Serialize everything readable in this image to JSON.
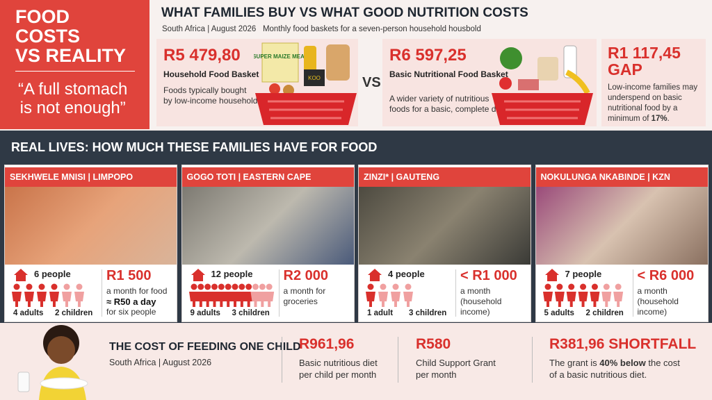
{
  "hero": {
    "title_lines": [
      "FOOD",
      "COSTS",
      "VS REALITY"
    ],
    "quote_lines": [
      "“A full stomach",
      "is not enough”"
    ]
  },
  "header": {
    "title": "WHAT FAMILIES BUY VS WHAT GOOD NUTRITION COSTS",
    "location_date": "South Africa | August 2026",
    "subtitle": "Monthly food baskets for a seven-person household housbold"
  },
  "baskets": [
    {
      "price": "R5 479,80",
      "name": "Household Food Basket",
      "description_lines": [
        "Foods typically bought",
        "by low-income households"
      ],
      "labels": [
        "SUPER MAIZE MEAL",
        "KOO"
      ]
    },
    {
      "price": "R6 597,25",
      "name": "Basic Nutritional Food Basket",
      "description_lines": [
        "A wider variety of nutritious",
        "foods for a basic, complete diet"
      ]
    }
  ],
  "vs": "VS",
  "gap": {
    "amount": "R1 117,45",
    "label": "GAP",
    "description_lines": [
      "Low-income families may",
      "underspend on basic",
      "nutritional food by a"
    ],
    "last_line": [
      "minimum of ",
      "17%",
      "."
    ]
  },
  "section_title": "REAL LIVES: HOW MUCH THESE FAMILIES HAVE FOR FOOD",
  "families": [
    {
      "name": "SEKHWELE MNISI | LIMPOPO",
      "people": "6 people",
      "icons": {
        "adults": 4,
        "children": 2
      },
      "adults": "4 adults",
      "children": "2 children",
      "amount": "R1 500",
      "lines": [
        {
          "text": "a month for food",
          "bold": false
        },
        {
          "text": "≈ R50 a day",
          "bold": true
        },
        {
          "text": "for six people",
          "bold": false
        }
      ]
    },
    {
      "name": "GOGO TOTI | EASTERN CAPE",
      "people": "12 people",
      "icons": {
        "adults": 9,
        "children": 3
      },
      "adults": "9 adults",
      "children": "3 children",
      "amount": "R2 000",
      "lines": [
        {
          "text": "a month for groceries",
          "bold": false
        }
      ]
    },
    {
      "name": "ZINZI* | GAUTENG",
      "people": "4 people",
      "icons": {
        "adults": 1,
        "children": 3
      },
      "adults": "1 adult",
      "children": "3 children",
      "amount": "< R1 000",
      "lines": [
        {
          "text": "a month",
          "bold": false
        },
        {
          "text": "(household income)",
          "bold": false
        }
      ]
    },
    {
      "name": "NOKULUNGA NKABINDE | KZN",
      "people": "7 people",
      "icons": {
        "adults": 5,
        "children": 2
      },
      "adults": "5 adults",
      "children": "2 children",
      "amount": "< R6 000",
      "lines": [
        {
          "text": "a month",
          "bold": false
        },
        {
          "text": "(household income)",
          "bold": false
        }
      ]
    }
  ],
  "child_cost": {
    "title": "THE COST OF FEEDING ONE CHILD",
    "location_date": "South Africa | August 2026",
    "items": [
      {
        "amount": "R961,96",
        "lines": [
          "Basic nutritious diet",
          "per child per month"
        ]
      },
      {
        "amount": "R580",
        "lines": [
          "Child Support Grant",
          "per month"
        ]
      }
    ],
    "shortfall": {
      "amount": "R381,96 SHORTFALL",
      "first_line": [
        "The grant is ",
        "40% below",
        " the cost"
      ],
      "second_line": "of a basic nutritious diet."
    }
  }
}
